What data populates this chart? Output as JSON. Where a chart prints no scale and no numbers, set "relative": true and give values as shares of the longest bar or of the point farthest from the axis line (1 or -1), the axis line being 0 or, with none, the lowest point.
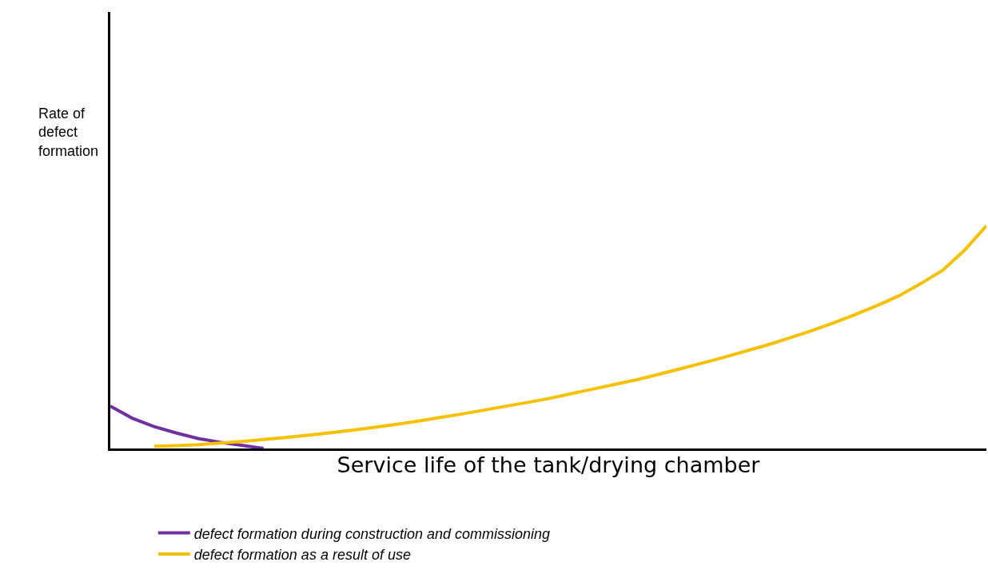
{
  "chart_data": {
    "type": "line",
    "relative": true,
    "xlabel": "Service life of the tank/drying chamber",
    "ylabel": "Rate of defect formation",
    "categories": [
      null,
      null,
      null,
      null,
      null,
      null,
      null,
      null,
      null,
      null,
      null,
      null,
      null,
      null,
      null,
      null,
      null,
      null,
      null,
      null,
      null,
      null,
      null,
      null,
      null,
      null,
      null,
      null,
      null,
      null,
      null,
      null,
      null,
      null,
      null,
      null,
      null,
      null,
      null,
      null,
      null
    ],
    "series": [
      {
        "name": "defect formation during construction and commissioning",
        "color": "#7030a0",
        "values": [
          0.19,
          0.136,
          0.098,
          0.07,
          0.045,
          0.028,
          0.014,
          0,
          null,
          null,
          null,
          null,
          null,
          null,
          null,
          null,
          null,
          null,
          null,
          null,
          null,
          null,
          null,
          null,
          null,
          null,
          null,
          null,
          null,
          null,
          null,
          null,
          null,
          null,
          null,
          null,
          null,
          null,
          null,
          null,
          null
        ]
      },
      {
        "name": "defect formation as a result of use",
        "color": "#f5c000",
        "values": [
          null,
          null,
          0.01,
          0.013,
          0.017,
          0.024,
          0.031,
          0.04,
          0.049,
          0.059,
          0.07,
          0.082,
          0.094,
          0.108,
          0.122,
          0.138,
          0.154,
          0.171,
          0.189,
          0.206,
          0.224,
          0.245,
          0.266,
          0.287,
          0.308,
          0.332,
          0.357,
          0.383,
          0.409,
          0.437,
          0.465,
          0.496,
          0.528,
          0.563,
          0.601,
          0.641,
          0.685,
          0.74,
          0.8,
          0.89,
          1
        ]
      }
    ],
    "legend": "bottom",
    "grid": false,
    "marker": "none",
    "line_style": "solid"
  }
}
